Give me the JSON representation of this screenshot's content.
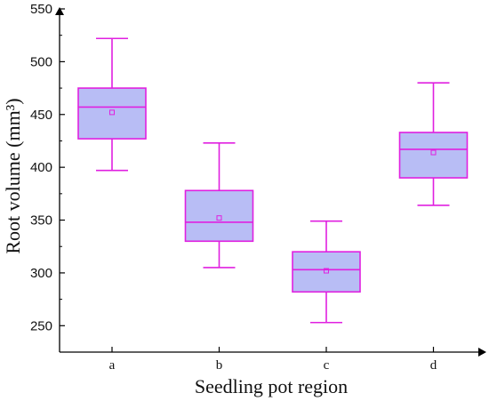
{
  "chart_data": {
    "type": "box",
    "xlabel": "Seedling pot region",
    "ylabel": "Root volume (mm³)",
    "ylim": [
      225,
      550
    ],
    "yticks": [
      250,
      300,
      350,
      400,
      450,
      500,
      550
    ],
    "categories": [
      "a",
      "b",
      "c",
      "d"
    ],
    "boxes": [
      {
        "category": "a",
        "min": 397,
        "q1": 427,
        "median": 457,
        "q3": 475,
        "max": 522,
        "mean": 452
      },
      {
        "category": "b",
        "min": 305,
        "q1": 330,
        "median": 348,
        "q3": 378,
        "max": 423,
        "mean": 352
      },
      {
        "category": "c",
        "min": 253,
        "q1": 282,
        "median": 303,
        "q3": 320,
        "max": 349,
        "mean": 302
      },
      {
        "category": "d",
        "min": 364,
        "q1": 390,
        "median": 417,
        "q3": 433,
        "max": 480,
        "mean": 414
      }
    ],
    "grid": false,
    "colors": {
      "stroke": "#e020e0",
      "fill": "#b8bdf5",
      "axis": "#000000"
    }
  }
}
